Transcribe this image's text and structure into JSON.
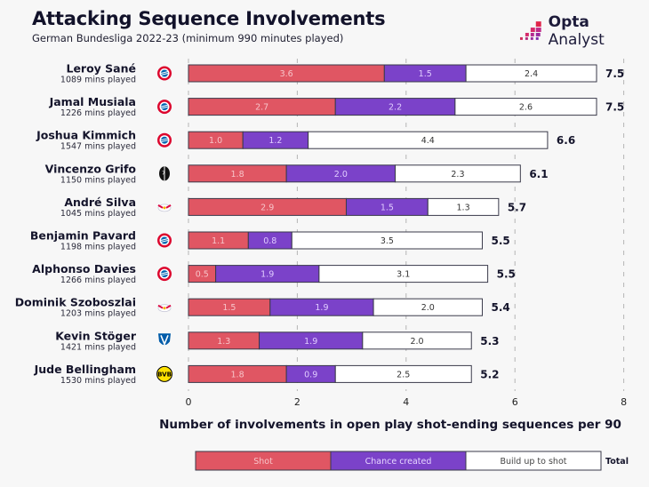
{
  "header": {
    "title": "Attacking Sequence Involvements",
    "subtitle": "German Bundesliga 2022-23 (minimum 990 minutes played)",
    "brand_bold": "Opta",
    "brand_light": "Analyst"
  },
  "colors": {
    "shot": "#e05663",
    "chance": "#7b42c9",
    "buildup": "#ffffff",
    "outline": "#3a3a4a",
    "grid": "#b5b5b5"
  },
  "chart_data": {
    "type": "bar",
    "orientation": "horizontal",
    "stacked": true,
    "title": "Attacking Sequence Involvements",
    "subtitle": "German Bundesliga 2022-23 (minimum 990 minutes played)",
    "xlabel": "Number of involvements in open play shot-ending sequences per 90",
    "ylabel": "",
    "xlim": [
      0,
      8
    ],
    "xticks": [
      0,
      2,
      4,
      6,
      8
    ],
    "grid": "vertical-dashed",
    "legend_position": "bottom",
    "legend": [
      "Shot",
      "Chance created",
      "Build up to shot"
    ],
    "legend_total_label": "Total",
    "mins_suffix": "mins played",
    "categories": [
      "Leroy Sané",
      "Jamal Musiala",
      "Joshua Kimmich",
      "Vincenzo Grifo",
      "André Silva",
      "Benjamin Pavard",
      "Alphonso Davies",
      "Dominik Szoboszlai",
      "Kevin Stöger",
      "Jude Bellingham"
    ],
    "minutes": [
      1089,
      1226,
      1547,
      1150,
      1045,
      1198,
      1266,
      1203,
      1421,
      1530
    ],
    "clubs": [
      "bayern-munich",
      "bayern-munich",
      "bayern-munich",
      "freiburg",
      "rb-leipzig",
      "bayern-munich",
      "bayern-munich",
      "rb-leipzig",
      "bochum",
      "borussia-dortmund"
    ],
    "series": [
      {
        "name": "Shot",
        "values": [
          3.6,
          2.7,
          1.0,
          1.8,
          2.9,
          1.1,
          0.5,
          1.5,
          1.3,
          1.8
        ]
      },
      {
        "name": "Chance created",
        "values": [
          1.5,
          2.2,
          1.2,
          2.0,
          1.5,
          0.8,
          1.9,
          1.9,
          1.9,
          0.9
        ]
      },
      {
        "name": "Build up to shot",
        "values": [
          2.4,
          2.6,
          4.4,
          2.3,
          1.3,
          3.5,
          3.1,
          2.0,
          2.0,
          2.5
        ]
      }
    ],
    "totals": [
      7.5,
      7.5,
      6.6,
      6.1,
      5.7,
      5.5,
      5.5,
      5.4,
      5.3,
      5.2
    ]
  }
}
